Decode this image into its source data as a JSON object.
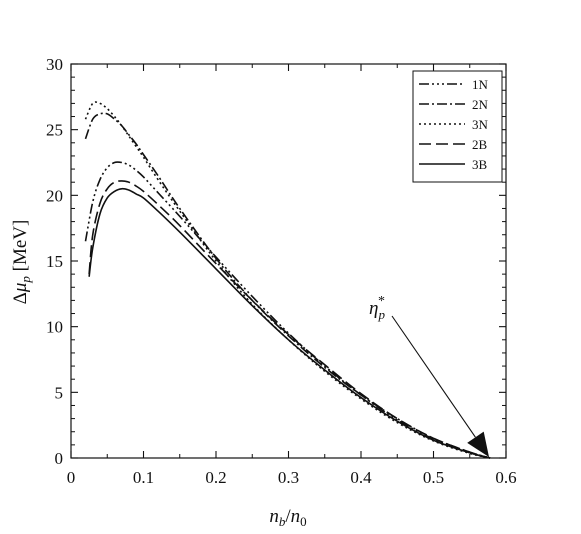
{
  "chart_data": {
    "type": "line",
    "xlabel": "n_b/n_0",
    "ylabel": "Δμ_p [MeV]",
    "xlim": [
      0,
      0.6
    ],
    "ylim": [
      0,
      30
    ],
    "x_ticks": [
      "0",
      "0.1",
      "0.2",
      "0.3",
      "0.4",
      "0.5",
      "0.6"
    ],
    "y_ticks": [
      "0",
      "5",
      "10",
      "15",
      "20",
      "25",
      "30"
    ],
    "legend_position": "top-right",
    "annotation": {
      "label": "η_p^*",
      "points_to": [
        0.578,
        0
      ]
    },
    "series": [
      {
        "name": "1N",
        "dash": "10,3,2,3,2,3,2,3",
        "x": [
          0.02,
          0.03,
          0.04,
          0.05,
          0.06,
          0.07,
          0.08,
          0.09,
          0.1,
          0.12,
          0.15,
          0.2,
          0.25,
          0.3,
          0.35,
          0.4,
          0.45,
          0.5,
          0.55,
          0.578
        ],
        "y": [
          16.5,
          19.5,
          21.2,
          22.1,
          22.5,
          22.5,
          22.3,
          21.9,
          21.4,
          20.2,
          18.4,
          15.3,
          12.3,
          9.5,
          7.0,
          4.8,
          2.9,
          1.45,
          0.4,
          0
        ]
      },
      {
        "name": "2N",
        "dash": "10,3,2,3",
        "x": [
          0.02,
          0.03,
          0.04,
          0.05,
          0.06,
          0.07,
          0.08,
          0.09,
          0.1,
          0.12,
          0.15,
          0.2,
          0.25,
          0.3,
          0.35,
          0.4,
          0.45,
          0.5,
          0.55,
          0.578
        ],
        "y": [
          24.3,
          25.8,
          26.2,
          26.2,
          25.8,
          25.3,
          24.6,
          23.9,
          23.1,
          21.5,
          19.0,
          15.2,
          12.0,
          9.3,
          6.9,
          4.8,
          3.0,
          1.5,
          0.45,
          0
        ]
      },
      {
        "name": "3N",
        "dash": "2,3",
        "x": [
          0.02,
          0.03,
          0.04,
          0.05,
          0.06,
          0.07,
          0.08,
          0.09,
          0.1,
          0.12,
          0.15,
          0.2,
          0.25,
          0.3,
          0.35,
          0.4,
          0.45,
          0.5,
          0.55,
          0.578
        ],
        "y": [
          25.8,
          27.0,
          27.0,
          26.6,
          26.0,
          25.3,
          24.5,
          23.7,
          22.9,
          21.2,
          18.8,
          15.0,
          11.7,
          9.0,
          6.6,
          4.5,
          2.7,
          1.3,
          0.35,
          0
        ]
      },
      {
        "name": "2B",
        "dash": "12,5",
        "x": [
          0.025,
          0.03,
          0.04,
          0.05,
          0.06,
          0.07,
          0.08,
          0.09,
          0.1,
          0.12,
          0.15,
          0.2,
          0.25,
          0.3,
          0.35,
          0.4,
          0.45,
          0.5,
          0.55,
          0.578
        ],
        "y": [
          14.0,
          17.0,
          19.4,
          20.5,
          21.0,
          21.1,
          21.0,
          20.7,
          20.3,
          19.3,
          17.7,
          14.8,
          12.0,
          9.4,
          7.1,
          4.9,
          3.0,
          1.5,
          0.45,
          0
        ]
      },
      {
        "name": "3B",
        "dash": "",
        "x": [
          0.025,
          0.03,
          0.04,
          0.05,
          0.06,
          0.07,
          0.08,
          0.09,
          0.1,
          0.12,
          0.15,
          0.2,
          0.25,
          0.3,
          0.35,
          0.4,
          0.45,
          0.5,
          0.55,
          0.578
        ],
        "y": [
          13.8,
          16.0,
          18.6,
          19.8,
          20.3,
          20.5,
          20.4,
          20.1,
          19.8,
          18.8,
          17.2,
          14.4,
          11.6,
          9.0,
          6.7,
          4.6,
          2.8,
          1.35,
          0.4,
          0
        ]
      }
    ]
  }
}
